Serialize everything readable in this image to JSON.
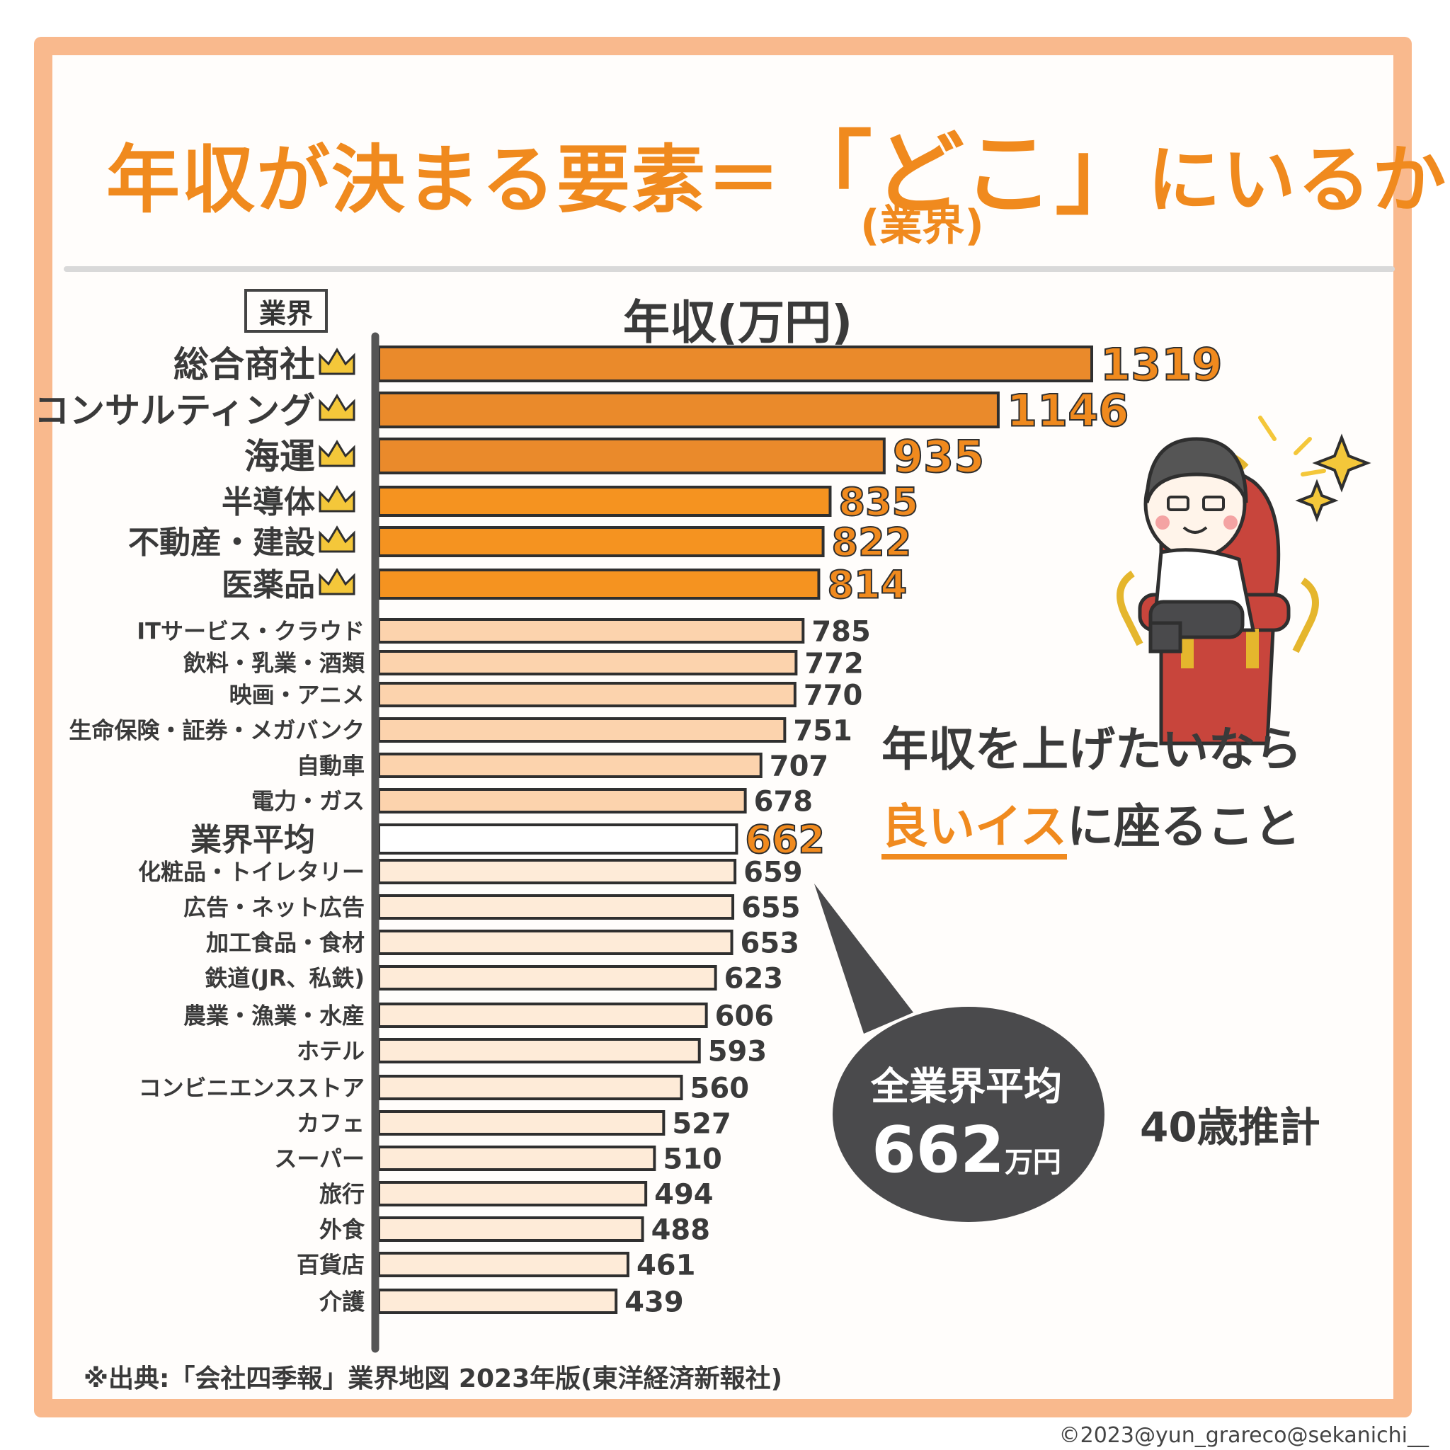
{
  "header": {
    "title_part1": "年収が決まる要素＝",
    "title_quote": "「どこ」",
    "title_part2": "にいるか",
    "title_sub": "(業界)"
  },
  "industry_box_label": "業界",
  "chart_data": {
    "type": "bar",
    "orientation": "horizontal",
    "ylabel": "年収(万円)",
    "categories": [
      "総合商社",
      "コンサルティング",
      "海運",
      "半導体",
      "不動産・建設",
      "医薬品",
      "ITサービス・クラウド",
      "飲料・乳業・酒類",
      "映画・アニメ",
      "生命保険・証券・メガバンク",
      "自動車",
      "電力・ガス",
      "業界平均",
      "化粧品・トイレタリー",
      "広告・ネット広告",
      "加工食品・食材",
      "鉄道(JR、私鉄)",
      "農業・漁業・水産",
      "ホテル",
      "コンビニエンスストア",
      "カフェ",
      "スーパー",
      "旅行",
      "外食",
      "百貨店",
      "介護"
    ],
    "values": [
      1319,
      1146,
      935,
      835,
      822,
      814,
      785,
      772,
      770,
      751,
      707,
      678,
      662,
      659,
      655,
      653,
      623,
      606,
      593,
      560,
      527,
      510,
      494,
      488,
      461,
      439
    ],
    "value_labels": [
      "1319",
      "1146",
      "935",
      "835",
      "822",
      "814",
      "785",
      "772",
      "770",
      "751",
      "707",
      "678",
      "662",
      "659",
      "655",
      "653",
      "623",
      "606",
      "593",
      "560",
      "527",
      "510",
      "494",
      "488",
      "461",
      "439"
    ],
    "xlim": [
      0,
      1319
    ],
    "grid": false,
    "legend": "none",
    "colors": {
      "top_dark": "#ea8a2b",
      "top_mid": "#f59320",
      "peach": "#fcd3ad",
      "light": "#feebd8",
      "average": "#ffffff",
      "outline": "#2f2f2f",
      "accent_text": "#f08a1e",
      "axis": "#555555",
      "crown": "#f4c73a"
    },
    "crown_count": 6
  },
  "callout": {
    "line1": "年収を上げたいなら",
    "highlight": "良いイス",
    "line2": "に座ること"
  },
  "bubble": {
    "line1": "全業界平均",
    "value": "662",
    "unit": "万円"
  },
  "age_note": "40歳推計",
  "source": "※出典:「会社四季報」業界地図 2023年版(東洋経済新報社)",
  "credit": "©2023@yun_grareco@sekanichi__"
}
